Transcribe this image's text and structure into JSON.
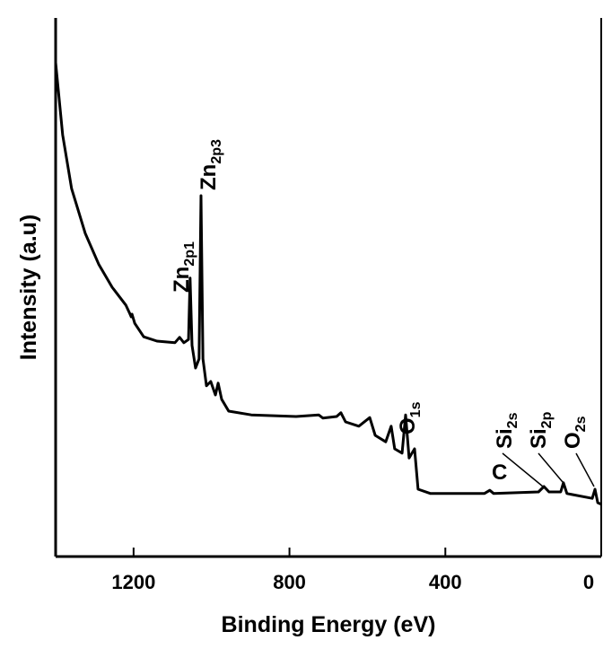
{
  "chart_data": {
    "type": "line",
    "x_label": "Binding Energy (eV)",
    "y_label": "Intensity (a.u)",
    "xlim": [
      1400,
      0
    ],
    "xticks": [
      1200,
      800,
      400,
      0
    ],
    "ylim": [
      0,
      100
    ],
    "series": [
      {
        "color": "#000000",
        "x": [
          1400,
          1382,
          1359,
          1324,
          1289,
          1255,
          1220,
          1209,
          1206,
          1204,
          1197,
          1174,
          1140,
          1094,
          1082,
          1071,
          1059,
          1055,
          1050,
          1041,
          1032,
          1027,
          1022,
          1013,
          1002,
          990,
          983,
          974,
          956,
          898,
          783,
          725,
          714,
          679,
          668,
          656,
          622,
          594,
          580,
          553,
          539,
          530,
          511,
          502,
          493,
          479,
          470,
          438,
          300,
          286,
          276,
          161,
          147,
          134,
          104,
          97,
          88,
          23,
          16,
          9,
          0
        ],
        "values": [
          91.7,
          78.3,
          68.3,
          60,
          54.2,
          50,
          46.7,
          45,
          44.5,
          45,
          43.3,
          40.8,
          40,
          39.7,
          40.7,
          39.7,
          40.3,
          51.7,
          39.2,
          35,
          36.7,
          67,
          36.7,
          31.7,
          32.5,
          30,
          32.2,
          29.2,
          27,
          26.3,
          26,
          26.3,
          25.7,
          26,
          26.7,
          25,
          24.2,
          25.8,
          22.5,
          21.3,
          24.2,
          20,
          19.2,
          26.3,
          18.3,
          20,
          12.5,
          11.7,
          11.7,
          12.3,
          11.7,
          12,
          13,
          12,
          12,
          13.7,
          11.7,
          10.8,
          12.5,
          10,
          9.7
        ]
      }
    ],
    "annotations": [
      {
        "text": "Zn",
        "sub": "2p1"
      },
      {
        "text": "Zn",
        "sub": "2p3"
      },
      {
        "text": "O",
        "sub": "1s"
      },
      {
        "text": "C"
      },
      {
        "text": "Si",
        "sub": "2s"
      },
      {
        "text": "Si",
        "sub": "2p"
      },
      {
        "text": "O",
        "sub": "2s"
      }
    ]
  }
}
